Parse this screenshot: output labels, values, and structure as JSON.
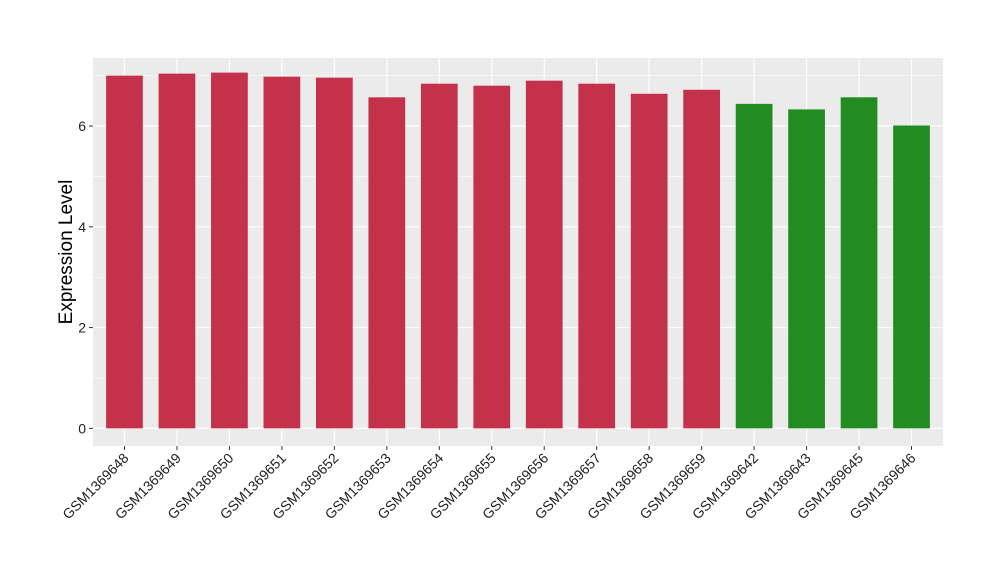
{
  "chart_data": {
    "type": "bar",
    "title": "",
    "xlabel": "",
    "ylabel": "Expression Level",
    "ylim": [
      -0.35,
      7.35
    ],
    "yticks": [
      0,
      2,
      4,
      6
    ],
    "grid": true,
    "legend": "none",
    "categories": [
      "GSM1369648",
      "GSM1369649",
      "GSM1369650",
      "GSM1369651",
      "GSM1369652",
      "GSM1369653",
      "GSM1369654",
      "GSM1369655",
      "GSM1369656",
      "GSM1369657",
      "GSM1369658",
      "GSM1369659",
      "GSM1369642",
      "GSM1369643",
      "GSM1369645",
      "GSM1369646"
    ],
    "values": [
      7.0,
      7.04,
      7.06,
      6.98,
      6.96,
      6.57,
      6.84,
      6.8,
      6.9,
      6.84,
      6.64,
      6.72,
      6.44,
      6.33,
      6.57,
      6.01
    ],
    "group_index": [
      0,
      0,
      0,
      0,
      0,
      0,
      0,
      0,
      0,
      0,
      0,
      0,
      1,
      1,
      1,
      1
    ],
    "colors": [
      "#c4314b",
      "#228b22"
    ],
    "panel_background": "#ebebeb",
    "grid_color": "#ffffff"
  }
}
